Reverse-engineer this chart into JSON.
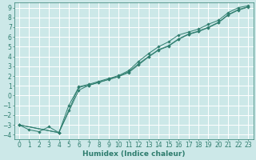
{
  "xlabel": "Humidex (Indice chaleur)",
  "bg_color": "#cce8e8",
  "grid_color": "#ffffff",
  "line_color": "#2e7d6e",
  "xlim": [
    -0.5,
    23.5
  ],
  "ylim": [
    -4.5,
    9.5
  ],
  "xticks": [
    0,
    1,
    2,
    3,
    4,
    5,
    6,
    7,
    8,
    9,
    10,
    11,
    12,
    13,
    14,
    15,
    16,
    17,
    18,
    19,
    20,
    21,
    22,
    23
  ],
  "yticks": [
    -4,
    -3,
    -2,
    -1,
    0,
    1,
    2,
    3,
    4,
    5,
    6,
    7,
    8,
    9
  ],
  "series1_x": [
    0,
    1,
    2,
    3,
    4,
    5,
    6,
    7,
    8,
    9,
    10,
    11,
    12,
    13,
    14,
    15,
    16,
    17,
    18,
    19,
    20,
    21,
    22,
    23
  ],
  "series1_y": [
    -3.0,
    -3.5,
    -3.7,
    -3.2,
    -3.8,
    -1.5,
    0.9,
    1.15,
    1.45,
    1.75,
    2.05,
    2.55,
    3.5,
    4.3,
    5.0,
    5.5,
    6.2,
    6.5,
    6.8,
    7.3,
    7.7,
    8.5,
    9.0,
    9.2
  ],
  "series2_x": [
    0,
    4,
    5,
    6,
    7,
    8,
    9,
    10,
    11,
    12,
    13,
    14,
    15,
    16,
    17,
    18,
    19,
    20,
    21,
    22,
    23
  ],
  "series2_y": [
    -3.0,
    -3.8,
    -1.0,
    0.85,
    1.05,
    1.35,
    1.65,
    1.95,
    2.45,
    3.25,
    4.0,
    4.7,
    5.1,
    5.8,
    6.3,
    6.6,
    7.0,
    7.5,
    8.3,
    8.8,
    9.1
  ],
  "series3_x": [
    0,
    4,
    6,
    7,
    8,
    9,
    10,
    11,
    12,
    13,
    14,
    15,
    16,
    17,
    18,
    19,
    20,
    21,
    22,
    23
  ],
  "series3_y": [
    -3.0,
    -3.8,
    0.55,
    1.05,
    1.35,
    1.65,
    1.95,
    2.35,
    3.15,
    3.95,
    4.65,
    5.05,
    5.75,
    6.25,
    6.55,
    6.95,
    7.45,
    8.25,
    8.75,
    9.05
  ],
  "tick_fontsize": 5.5,
  "xlabel_fontsize": 6.5
}
